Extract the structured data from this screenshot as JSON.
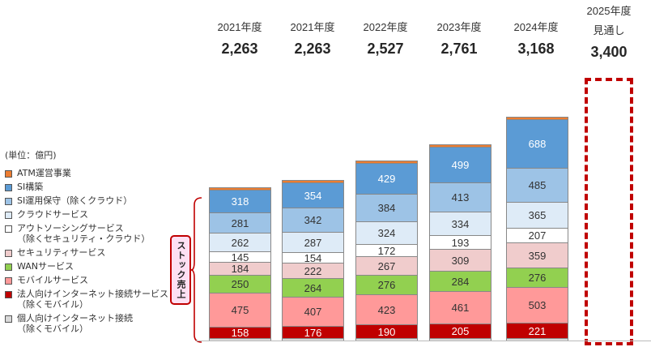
{
  "unit_label": "(単位：億円)",
  "legend": [
    {
      "label": "ATM運営事業",
      "color": "#ed7d31"
    },
    {
      "label": "SI構築",
      "color": "#5b9bd5"
    },
    {
      "label": "SI運用保守（除くクラウド）",
      "color": "#9dc3e6"
    },
    {
      "label": "クラウドサービス",
      "color": "#deebf7"
    },
    {
      "label": "アウトソーシングサービス\n（除くセキュリティ・クラウド）",
      "color": "#ffffff"
    },
    {
      "label": "セキュリティサービス",
      "color": "#f0cccc"
    },
    {
      "label": "WANサービス",
      "color": "#92d050"
    },
    {
      "label": "モバイルサービス",
      "color": "#ff9999"
    },
    {
      "label": "法人向けインターネット接続サービス\n（除くモバイル）",
      "color": "#c00000"
    },
    {
      "label": "個人向けインターネット接続\n（除くモバイル）",
      "color": "#d9d9d9"
    }
  ],
  "stock_label": "ストック売上",
  "years": [
    {
      "label": "2021年度",
      "total": "2,263"
    },
    {
      "label": "2021年度",
      "total": "2,263"
    },
    {
      "label": "2022年度",
      "total": "2,527"
    },
    {
      "label": "2023年度",
      "total": "2,761"
    },
    {
      "label": "2024年度",
      "total": "3,168"
    },
    {
      "label": "2025年度",
      "sublabel": "見通し",
      "total": "3,400"
    }
  ],
  "chart_data": {
    "type": "bar",
    "stacked": true,
    "title": "",
    "unit": "億円",
    "categories": [
      "2021年度",
      "2021年度",
      "2022年度",
      "2023年度",
      "2024年度",
      "2025年度 見通し"
    ],
    "totals": [
      2263,
      2263,
      2527,
      2761,
      3168,
      3400
    ],
    "series": [
      {
        "name": "個人向けインターネット接続（除くモバイル）",
        "color": "#d9d9d9",
        "values": [
          null,
          null,
          null,
          null,
          null,
          null
        ]
      },
      {
        "name": "法人向けインターネット接続サービス（除くモバイル）",
        "color": "#c00000",
        "values": [
          158,
          176,
          190,
          205,
          221,
          null
        ]
      },
      {
        "name": "モバイルサービス",
        "color": "#ff9999",
        "values": [
          475,
          407,
          423,
          461,
          503,
          null
        ]
      },
      {
        "name": "WANサービス",
        "color": "#92d050",
        "values": [
          250,
          264,
          276,
          284,
          276,
          null
        ]
      },
      {
        "name": "セキュリティサービス",
        "color": "#f0cccc",
        "values": [
          184,
          222,
          267,
          309,
          359,
          null
        ]
      },
      {
        "name": "アウトソーシングサービス（除くセキュリティ・クラウド）",
        "color": "#ffffff",
        "values": [
          145,
          154,
          172,
          193,
          207,
          null
        ]
      },
      {
        "name": "クラウドサービス",
        "color": "#deebf7",
        "values": [
          262,
          287,
          324,
          334,
          365,
          null
        ]
      },
      {
        "name": "SI運用保守（除くクラウド）",
        "color": "#9dc3e6",
        "values": [
          281,
          342,
          384,
          413,
          485,
          null
        ]
      },
      {
        "name": "SI構築",
        "color": "#5b9bd5",
        "values": [
          318,
          354,
          429,
          499,
          688,
          null
        ]
      },
      {
        "name": "ATM運営事業",
        "color": "#ed7d31",
        "values": [
          null,
          null,
          null,
          null,
          null,
          null
        ]
      }
    ],
    "annotations": [
      "ストック売上 (brace spanning SI運用保守 down to 個人向け)",
      "2025年度 見通し shown as dashed red outline box"
    ],
    "grid": false,
    "legend_position": "left"
  }
}
